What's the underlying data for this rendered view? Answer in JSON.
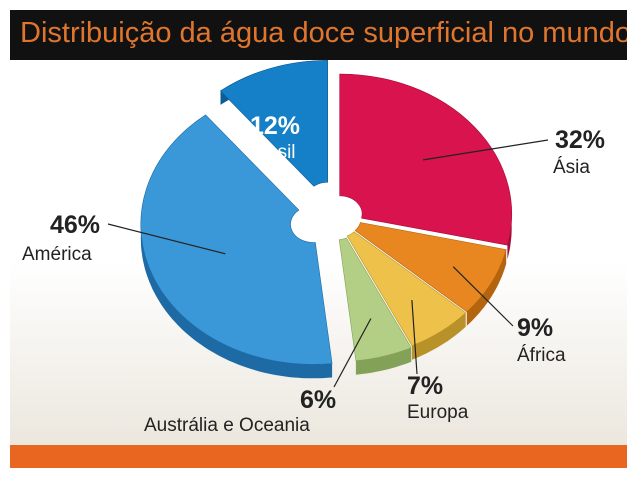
{
  "title": "Distribuição da água doce superficial no mundo",
  "colors": {
    "title_bg": "#111111",
    "title_text": "#e0762e",
    "footer": "#e8661f"
  },
  "chart_data": {
    "type": "pie",
    "title": "Distribuição da água doce superficial no mundo",
    "slices": [
      {
        "label": "Ásia",
        "value": 32,
        "value_label": "32%",
        "color": "#d8134d",
        "side": "#a40d39"
      },
      {
        "label": "África",
        "value": 9,
        "value_label": "9%",
        "color": "#e8861f",
        "side": "#b4640f"
      },
      {
        "label": "Europa",
        "value": 7,
        "value_label": "7%",
        "color": "#eec24a",
        "side": "#b89128"
      },
      {
        "label": "Austrália e Oceania",
        "value": 6,
        "value_label": "6%",
        "color": "#b3cf85",
        "side": "#84a257"
      },
      {
        "label": "América",
        "value": 46,
        "value_label": "46%",
        "color": "#3b98d8",
        "side": "#1d6aa5"
      },
      {
        "label": "Brasil",
        "value": 12,
        "value_label": "12%",
        "color": "#1580c8",
        "side": "#0d5c94"
      }
    ]
  }
}
